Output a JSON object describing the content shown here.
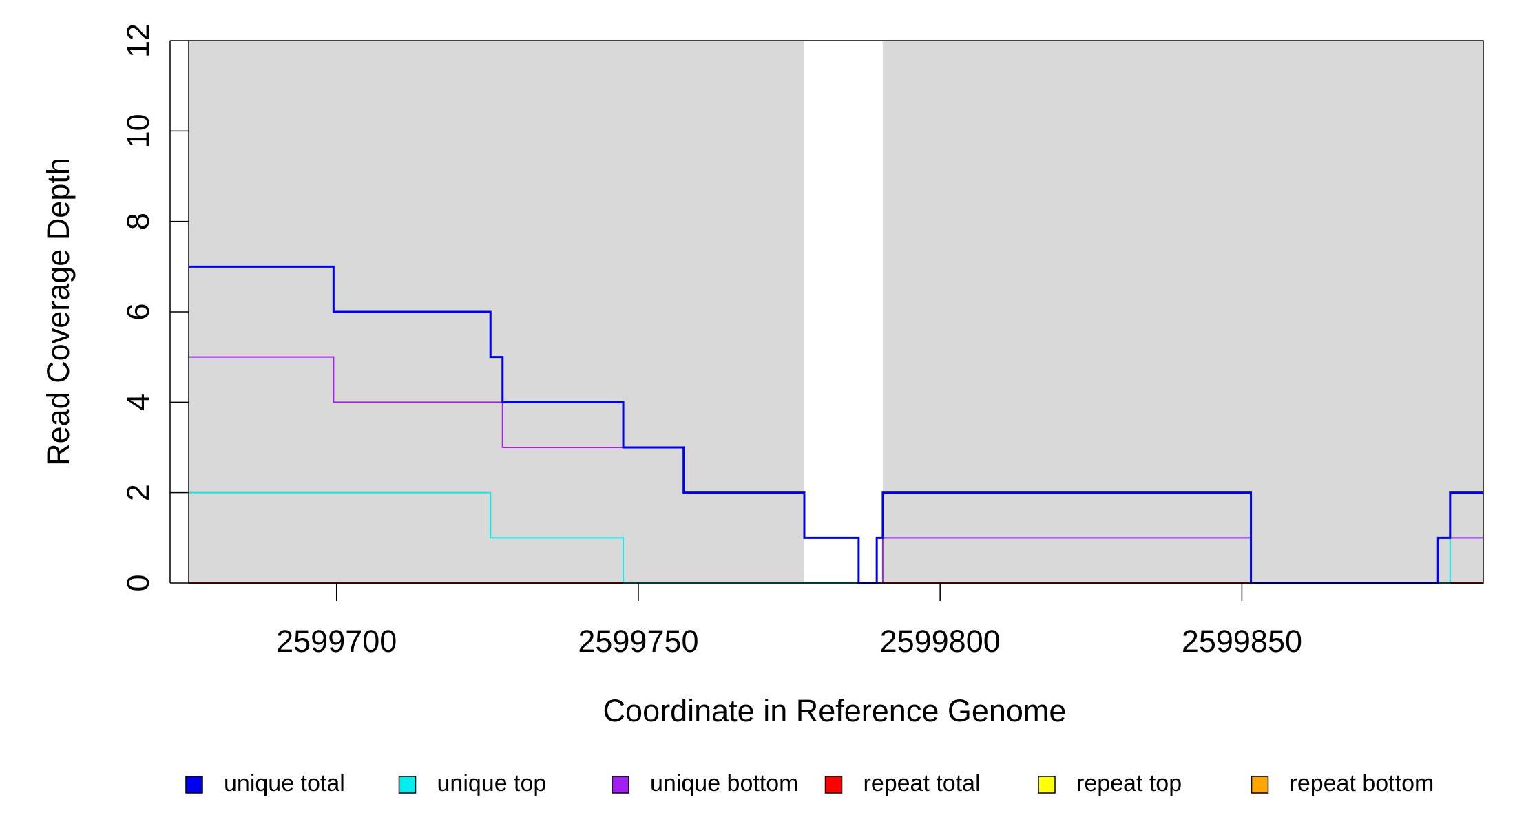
{
  "chart_data": {
    "type": "line",
    "step": true,
    "title": "",
    "xlabel": "Coordinate in Reference Genome",
    "ylabel": "Read Coverage Depth",
    "xlim": [
      2599675.5,
      2599890
    ],
    "ylim": [
      0,
      12
    ],
    "x_ticks": [
      2599700,
      2599750,
      2599800,
      2599850
    ],
    "x_tick_labels": [
      "2599700",
      "2599750",
      "2599800",
      "2599850"
    ],
    "y_ticks": [
      0,
      2,
      4,
      6,
      8,
      10,
      12
    ],
    "y_tick_labels": [
      "0",
      "2",
      "4",
      "6",
      "8",
      "10",
      "12"
    ],
    "shaded_regions": [
      {
        "x0": 2599675.5,
        "x1": 2599777.5,
        "color": "#d9d9d9"
      },
      {
        "x0": 2599790.5,
        "x1": 2599890,
        "color": "#d9d9d9"
      }
    ],
    "series": [
      {
        "name": "unique total",
        "color": "#0000ee",
        "width": 3,
        "x": [
          2599675.5,
          2599699.5,
          2599725.5,
          2599727.5,
          2599747.5,
          2599757.5,
          2599777.5,
          2599786.5,
          2599789.5,
          2599790.5,
          2599851.5,
          2599882.5,
          2599884.5,
          2599890
        ],
        "y": [
          7,
          6,
          5,
          4,
          3,
          2,
          1,
          0,
          1,
          2,
          0,
          1,
          2,
          2
        ]
      },
      {
        "name": "unique top",
        "color": "#00eeee",
        "width": 2,
        "x": [
          2599675.5,
          2599725.5,
          2599747.5,
          2599788.5,
          2599789.5,
          2599851.5,
          2599884.5,
          2599890
        ],
        "y": [
          2,
          1,
          0,
          0,
          1,
          0,
          1,
          1
        ]
      },
      {
        "name": "unique bottom",
        "color": "#a020f0",
        "width": 2,
        "x": [
          2599675.5,
          2599699.5,
          2599727.5,
          2599747.5,
          2599757.5,
          2599777.5,
          2599786.5,
          2599790.5,
          2599851.5,
          2599882.5,
          2599890
        ],
        "y": [
          5,
          4,
          3,
          3,
          2,
          1,
          0,
          1,
          0,
          1,
          1
        ]
      },
      {
        "name": "repeat total",
        "color": "#ff0000",
        "width": 2,
        "x": [
          2599675.5,
          2599890
        ],
        "y": [
          0,
          0
        ]
      },
      {
        "name": "repeat top",
        "color": "#ffff00",
        "width": 2,
        "x": [
          2599675.5,
          2599890
        ],
        "y": [
          0,
          0
        ]
      },
      {
        "name": "repeat bottom",
        "color": "#ffa500",
        "width": 2,
        "x": [
          2599675.5,
          2599890
        ],
        "y": [
          0,
          0
        ]
      }
    ],
    "legend": {
      "placement": "bottom",
      "entries": [
        {
          "label": "unique total",
          "color": "#0000ee"
        },
        {
          "label": "unique top",
          "color": "#00eeee"
        },
        {
          "label": "unique bottom",
          "color": "#a020f0"
        },
        {
          "label": "repeat total",
          "color": "#ff0000"
        },
        {
          "label": "repeat top",
          "color": "#ffff00"
        },
        {
          "label": "repeat bottom",
          "color": "#ffa500"
        }
      ]
    }
  }
}
